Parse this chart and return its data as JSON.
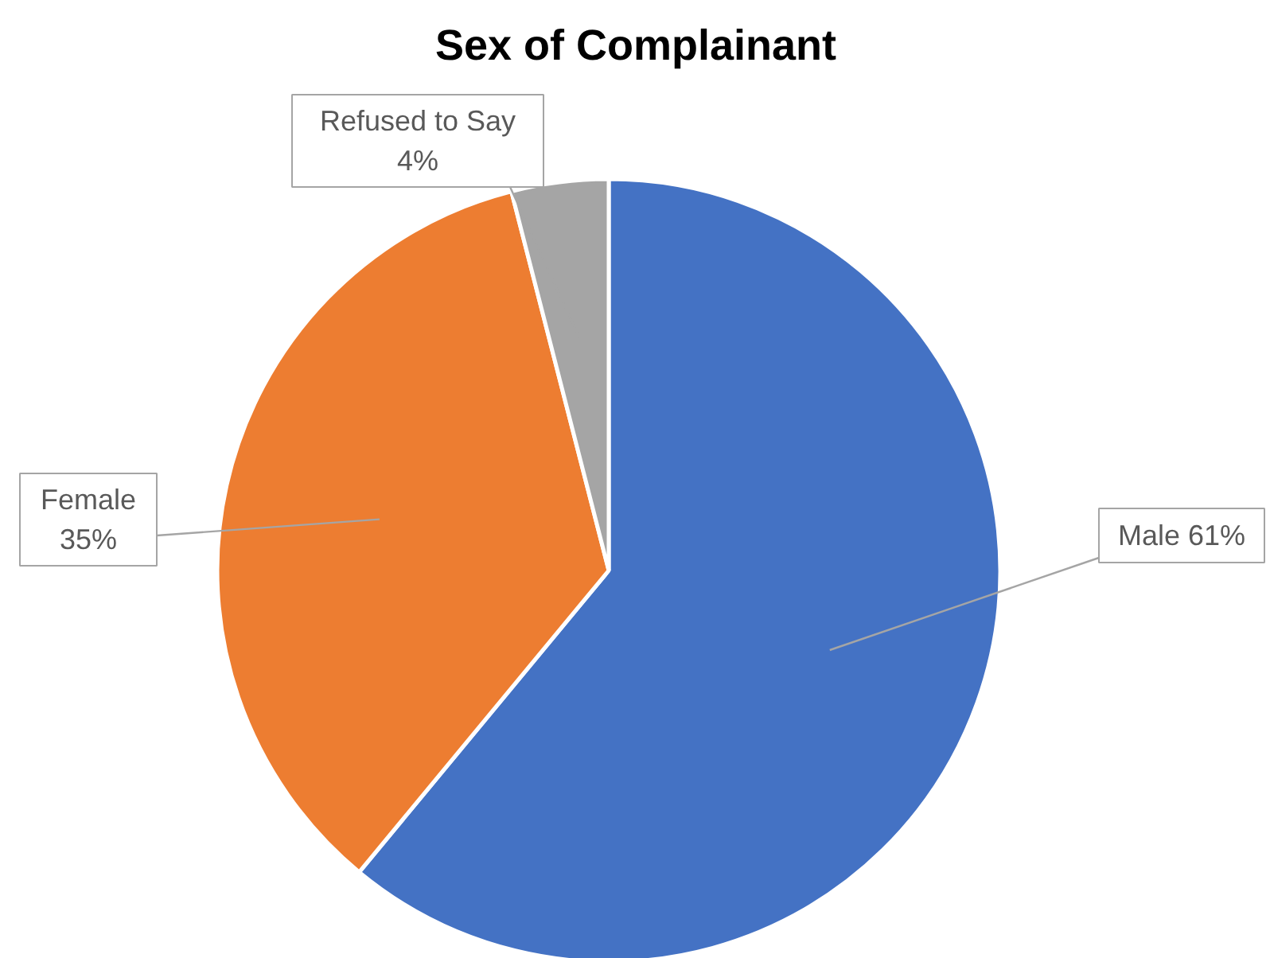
{
  "chart_data": {
    "type": "pie",
    "title": "Sex of Complainant",
    "categories": [
      "Male",
      "Female",
      "Refused to Say"
    ],
    "values": [
      61,
      35,
      4
    ],
    "value_labels": [
      "61%",
      "35%",
      "4%"
    ],
    "colors": [
      "#4472c4",
      "#ed7d31",
      "#a5a5a5"
    ]
  }
}
